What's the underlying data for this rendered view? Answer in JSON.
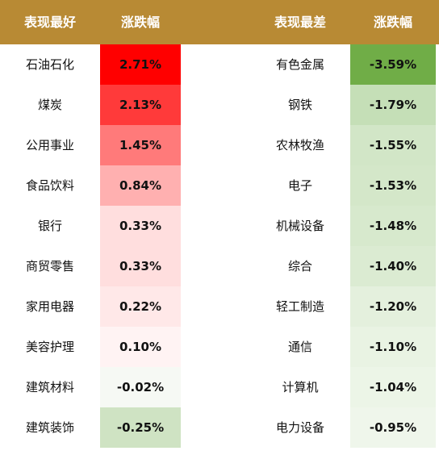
{
  "chart_data": {
    "type": "table",
    "columns": [
      "表现最好",
      "涨跌幅",
      "表现最差",
      "涨跌幅"
    ],
    "best": [
      {
        "name": "石油石化",
        "value": "2.71%",
        "color": "#ff0000"
      },
      {
        "name": "煤炭",
        "value": "2.13%",
        "color": "#ff3a3a"
      },
      {
        "name": "公用事业",
        "value": "1.45%",
        "color": "#ff7a7a"
      },
      {
        "name": "食品饮料",
        "value": "0.84%",
        "color": "#ffb0b0"
      },
      {
        "name": "银行",
        "value": "0.33%",
        "color": "#ffdede"
      },
      {
        "name": "商贸零售",
        "value": "0.33%",
        "color": "#ffdede"
      },
      {
        "name": "家用电器",
        "value": "0.22%",
        "color": "#ffe8e8"
      },
      {
        "name": "美容护理",
        "value": "0.10%",
        "color": "#fff3f3"
      },
      {
        "name": "建筑材料",
        "value": "-0.02%",
        "color": "#f6f9f4"
      },
      {
        "name": "建筑装饰",
        "value": "-0.25%",
        "color": "#cfe3c3"
      }
    ],
    "worst": [
      {
        "name": "有色金属",
        "value": "-3.59%",
        "color": "#70ad47"
      },
      {
        "name": "钢铁",
        "value": "-1.79%",
        "color": "#c5dfb7"
      },
      {
        "name": "农林牧渔",
        "value": "-1.55%",
        "color": "#d2e6c7"
      },
      {
        "name": "电子",
        "value": "-1.53%",
        "color": "#d4e7c9"
      },
      {
        "name": "机械设备",
        "value": "-1.48%",
        "color": "#d7e9cd"
      },
      {
        "name": "综合",
        "value": "-1.40%",
        "color": "#dbebd2"
      },
      {
        "name": "轻工制造",
        "value": "-1.20%",
        "color": "#e4f0dd"
      },
      {
        "name": "通信",
        "value": "-1.10%",
        "color": "#e9f3e3"
      },
      {
        "name": "计算机",
        "value": "-1.04%",
        "color": "#ecf5e7"
      },
      {
        "name": "电力设备",
        "value": "-0.95%",
        "color": "#eff6eb"
      }
    ]
  }
}
